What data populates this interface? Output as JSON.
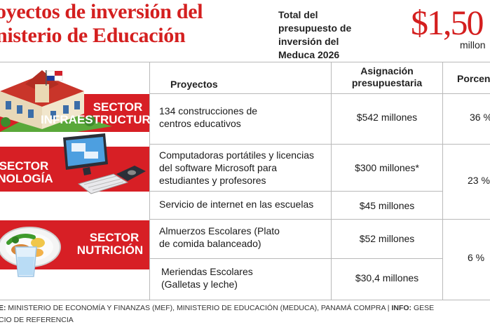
{
  "header": {
    "title_line1": "oyectos de inversión del",
    "title_line2": "nisterio de Educación",
    "total_label": "Total del presupuesto de inversión del Meduca 2026",
    "total_amount": "$1,50",
    "total_unit": "millon"
  },
  "table": {
    "col_projects": "Proyectos",
    "col_allocation": "Asignación presupuestaria",
    "col_percent": "Porcen",
    "sectors": [
      {
        "label_line1": "SECTOR",
        "label_line2": "INFRAESTRUCTURA",
        "rows": [
          {
            "project": "134 construcciones de centros educativos",
            "allocation": "$542 millones"
          }
        ],
        "percent": "36 %"
      },
      {
        "label_line1": "SECTOR",
        "label_line2": "NOLOGÍA",
        "rows": [
          {
            "project": "Computadoras portátiles y licencias del software Microsoft para estudiantes y profesores",
            "allocation": "$300 millones*"
          },
          {
            "project": "Servicio de internet en las escuelas",
            "allocation": "$45 millones"
          }
        ],
        "percent": "23 %"
      },
      {
        "label_line1": "SECTOR",
        "label_line2": "NUTRICIÓN",
        "rows": [
          {
            "project": "Almuerzos Escolares (Plato de comida balanceado)",
            "allocation": "$52 millones"
          },
          {
            "project": "Meriendas Escolares (Galletas y leche)",
            "allocation": "$30,4 millones"
          }
        ],
        "percent": "6 %"
      }
    ]
  },
  "footer": {
    "source_label": "E:",
    "source_text": "MINISTERIO DE ECONOMÍA Y FINANZAS (MEF), MINISTERIO DE EDUCACIÓN (MEDUCA), PANAMÁ COMPRA |",
    "info_label": "INFO:",
    "info_text": "GESE",
    "line2": "CIO DE REFERENCIA"
  },
  "colors": {
    "brand_red": "#d71f25",
    "title_red": "#d41f1f",
    "grid": "#b9b9b9"
  },
  "icons": [
    "school-building-icon",
    "panama-flag-icon",
    "desktop-computer-icon",
    "keyboard-icon",
    "mouse-icon",
    "meal-plate-icon",
    "water-glass-icon"
  ]
}
